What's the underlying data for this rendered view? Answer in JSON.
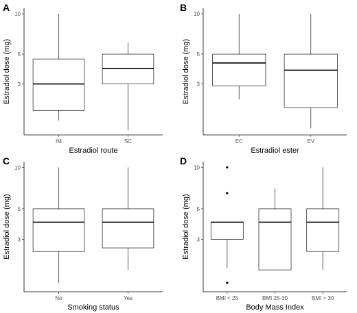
{
  "chart_data": [
    {
      "type": "boxplot",
      "panel": "A",
      "xlabel": "Estradiol route",
      "ylabel": "Estradiol dose (mg)",
      "ylim": [
        1.25,
        11
      ],
      "yscale": "log",
      "yticks": [
        3,
        5,
        10
      ],
      "categories": [
        "IM",
        "SC"
      ],
      "boxes": [
        {
          "low": 1.6,
          "q1": 1.9,
          "median": 3.0,
          "q3": 4.6,
          "high": 10,
          "outliers": []
        },
        {
          "low": 1.35,
          "q1": 3.0,
          "median": 3.9,
          "q3": 5.0,
          "high": 6.1,
          "outliers": []
        }
      ]
    },
    {
      "type": "boxplot",
      "panel": "B",
      "xlabel": "Estradiol ester",
      "ylabel": "Estradiol dose (mg)",
      "ylim": [
        1.25,
        11
      ],
      "yscale": "log",
      "yticks": [
        3,
        5,
        10
      ],
      "categories": [
        "EC",
        "EV"
      ],
      "boxes": [
        {
          "low": 2.3,
          "q1": 2.9,
          "median": 4.3,
          "q3": 5.0,
          "high": 10,
          "outliers": []
        },
        {
          "low": 1.4,
          "q1": 2.0,
          "median": 3.8,
          "q3": 5.0,
          "high": 10,
          "outliers": []
        }
      ]
    },
    {
      "type": "boxplot",
      "panel": "C",
      "xlabel": "Smoking status",
      "ylabel": "Estradiol dose (mg)",
      "ylim": [
        1.25,
        11
      ],
      "yscale": "log",
      "yticks": [
        3,
        5,
        10
      ],
      "categories": [
        "No",
        "Yes"
      ],
      "boxes": [
        {
          "low": 1.45,
          "q1": 2.45,
          "median": 4.0,
          "q3": 5.0,
          "high": 10,
          "outliers": []
        },
        {
          "low": 1.8,
          "q1": 2.6,
          "median": 4.0,
          "q3": 5.0,
          "high": 10,
          "outliers": []
        }
      ]
    },
    {
      "type": "boxplot",
      "panel": "D",
      "xlabel": "Body Mass Index",
      "ylabel": "Estradiol dose (mg)",
      "ylim": [
        1.25,
        11
      ],
      "yscale": "log",
      "yticks": [
        3,
        5,
        10
      ],
      "categories": [
        "BMI < 25",
        "BMI 25-30",
        "BMI > 30"
      ],
      "boxes": [
        {
          "low": 1.85,
          "q1": 3.0,
          "median": 4.0,
          "q3": 4.0,
          "high": 4.0,
          "outliers": [
            10,
            6.5,
            1.45
          ]
        },
        {
          "low": 1.8,
          "q1": 1.8,
          "median": 4.0,
          "q3": 5.0,
          "high": 7.0,
          "outliers": []
        },
        {
          "low": 1.8,
          "q1": 2.45,
          "median": 4.0,
          "q3": 5.0,
          "high": 10,
          "outliers": []
        }
      ]
    }
  ]
}
